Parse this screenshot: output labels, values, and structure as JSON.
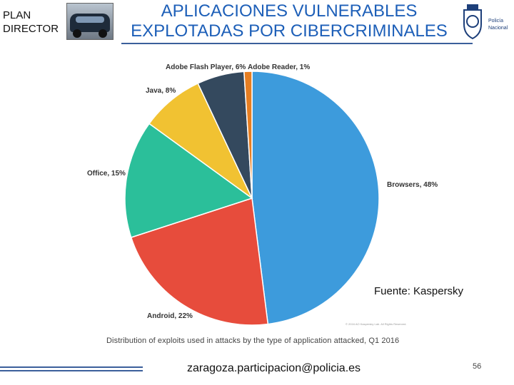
{
  "header": {
    "plan_line1": "PLAN",
    "plan_line2": "DIRECTOR",
    "title_line1": "APLICACIONES VULNERABLES",
    "title_line2": "EXPLOTADAS POR CIBERCRIMINALES",
    "logo_line1": "Policía",
    "logo_line2": "Nacional"
  },
  "chart_data": {
    "type": "pie",
    "slices": [
      {
        "label": "Browsers, 48%",
        "value": 48,
        "color": "#3d9bdc"
      },
      {
        "label": "Android, 22%",
        "value": 22,
        "color": "#e74c3c"
      },
      {
        "label": "Office, 15%",
        "value": 15,
        "color": "#2bbf9a"
      },
      {
        "label": "Java, 8%",
        "value": 8,
        "color": "#f1c232"
      },
      {
        "label": "Adobe Flash Player, 6%",
        "value": 6,
        "color": "#34495e"
      },
      {
        "label": "Adobe Reader, 1%",
        "value": 1,
        "color": "#e67e22"
      }
    ],
    "caption": "Distribution of exploits used in attacks by the type of application attacked, Q1 2016",
    "copyright": "© 2016 AO Kaspersky Lab. All Rights Reserved."
  },
  "source": "Fuente: Kaspersky",
  "footer": {
    "email": "zaragoza.participacion@policia.es",
    "page": "56"
  }
}
